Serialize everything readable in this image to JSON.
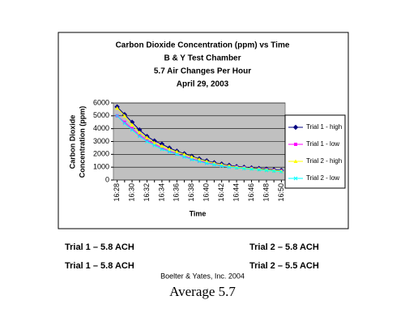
{
  "chart_data": {
    "type": "line",
    "title": [
      "Carbon Dioxide Concentration (ppm) vs Time",
      "B & Y Test Chamber",
      "5.7 Air Changes Per Hour",
      "April 29, 2003"
    ],
    "x_label": "Time",
    "y_label": [
      "Carbon Dioxide",
      "Concentration (ppm)"
    ],
    "categories": [
      "16:28",
      null,
      "16:30",
      null,
      "16:32",
      null,
      "16:34",
      null,
      "16:36",
      null,
      "16:38",
      null,
      "16:40",
      null,
      "16:42",
      null,
      "16:44",
      null,
      "16:46",
      null,
      "16:48",
      null,
      "16:50"
    ],
    "ylim": [
      0,
      6000
    ],
    "yticks": [
      0,
      1000,
      2000,
      3000,
      4000,
      5000,
      6000
    ],
    "grid": true,
    "series": [
      {
        "name": "Trial 1 - high",
        "color": "#000080",
        "marker": "diamond",
        "values": [
          5700,
          5100,
          4500,
          3900,
          3400,
          3050,
          2800,
          2500,
          2250,
          2050,
          1850,
          1650,
          1500,
          1350,
          1250,
          1150,
          1050,
          1000,
          950,
          900,
          850,
          800,
          750
        ]
      },
      {
        "name": "Trial 1  - low",
        "color": "#ff00ff",
        "marker": "square",
        "values": [
          5000,
          4500,
          4000,
          3500,
          3100,
          2800,
          2500,
          2250,
          2050,
          1850,
          1650,
          1500,
          1350,
          1250,
          1150,
          1050,
          1000,
          950,
          900,
          850,
          800,
          750,
          700
        ]
      },
      {
        "name": "Trial 2 - high",
        "color": "#ffff00",
        "marker": "triangle",
        "values": [
          5600,
          5000,
          4300,
          3700,
          3300,
          2900,
          2650,
          2400,
          2200,
          2000,
          1800,
          1600,
          1450,
          1300,
          1200,
          1100,
          1000,
          950,
          900,
          850,
          800,
          750,
          700
        ]
      },
      {
        "name": "Trial 2 - low",
        "color": "#00ffff",
        "marker": "x",
        "values": [
          5000,
          4400,
          3900,
          3400,
          3000,
          2700,
          2400,
          2200,
          2000,
          1800,
          1600,
          1450,
          1300,
          1200,
          1100,
          1000,
          950,
          900,
          850,
          800,
          750,
          700,
          650
        ]
      }
    ]
  },
  "notes": {
    "row1_left": "Trial 1 – 5.8 ACH",
    "row1_right": "Trial 2 – 5.8 ACH",
    "row2_left": "Trial 1 – 5.8 ACH",
    "row2_right": "Trial 2 – 5.5 ACH",
    "credit": "Boelter & Yates, Inc. 2004",
    "average": "Average 5.7"
  }
}
